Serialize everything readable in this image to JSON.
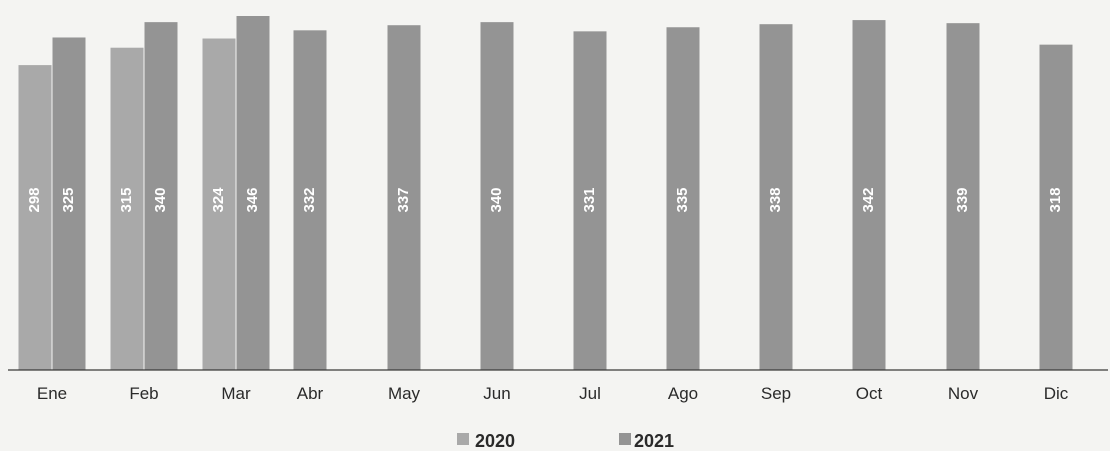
{
  "chart_data": {
    "type": "bar",
    "categories": [
      "Ene",
      "Feb",
      "Mar",
      "Abr",
      "May",
      "Jun",
      "Jul",
      "Ago",
      "Sep",
      "Oct",
      "Nov",
      "Dic"
    ],
    "series": [
      {
        "name": "2020",
        "values": [
          298,
          315,
          324,
          null,
          null,
          null,
          null,
          null,
          null,
          null,
          null,
          null
        ],
        "color": "#a9a9a9"
      },
      {
        "name": "2021",
        "values": [
          325,
          340,
          346,
          332,
          337,
          340,
          331,
          335,
          338,
          342,
          339,
          318
        ],
        "color": "#949494"
      }
    ],
    "title": "",
    "xlabel": "",
    "ylabel": "",
    "ylim": [
      0,
      346
    ],
    "grid": false,
    "legend": "bottom-center",
    "data_labels": true
  }
}
